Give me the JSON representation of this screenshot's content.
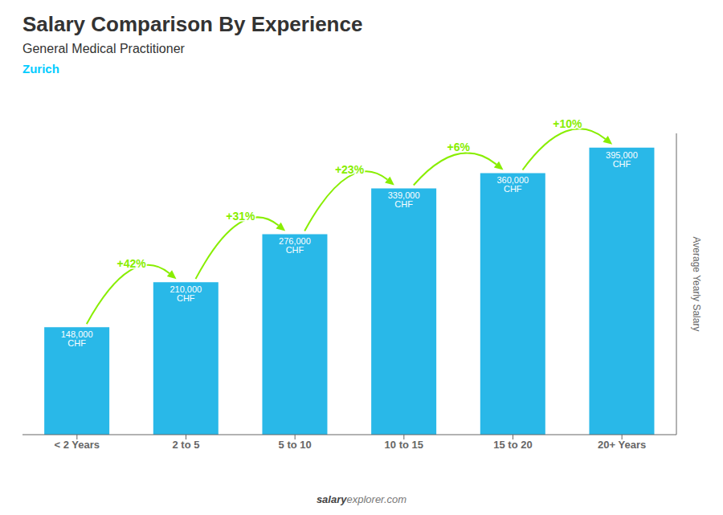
{
  "chart_data": {
    "type": "bar",
    "title": "Salary Comparison By Experience",
    "subtitle": "General Medical Practitioner",
    "categories": [
      "< 2 Years",
      "2 to 5",
      "5 to 10",
      "10 to 15",
      "15 to 20",
      "20+ Years"
    ],
    "values": [
      148000,
      210000,
      276000,
      339000,
      360000,
      395000
    ],
    "value_labels": [
      "148,000 CHF",
      "210,000 CHF",
      "276,000 CHF",
      "339,000 CHF",
      "360,000 CHF",
      "395,000 CHF"
    ],
    "data_labels": true,
    "color": "#29b8e8",
    "ylabel": "Average Yearly Salary",
    "ylim": [
      0,
      414750
    ],
    "tick_labels": "x",
    "grid": false,
    "annotations": [
      {
        "text": "Zurich",
        "color": "#00ccff"
      },
      {
        "text": "+42%",
        "from": "< 2 Years",
        "to": "2 to 5",
        "color": "#88ee00"
      },
      {
        "text": "+31%",
        "from": "2 to 5",
        "to": "5 to 10",
        "color": "#88ee00"
      },
      {
        "text": "+23%",
        "from": "5 to 10",
        "to": "10 to 15",
        "color": "#88ee00"
      },
      {
        "text": "+6%",
        "from": "10 to 15",
        "to": "15 to 20",
        "color": "#88ee00"
      },
      {
        "text": "+10%",
        "from": "15 to 20",
        "to": "20+ Years",
        "color": "#88ee00"
      },
      {
        "text": "salary"
      },
      {
        "text": "explorer.com"
      }
    ]
  }
}
